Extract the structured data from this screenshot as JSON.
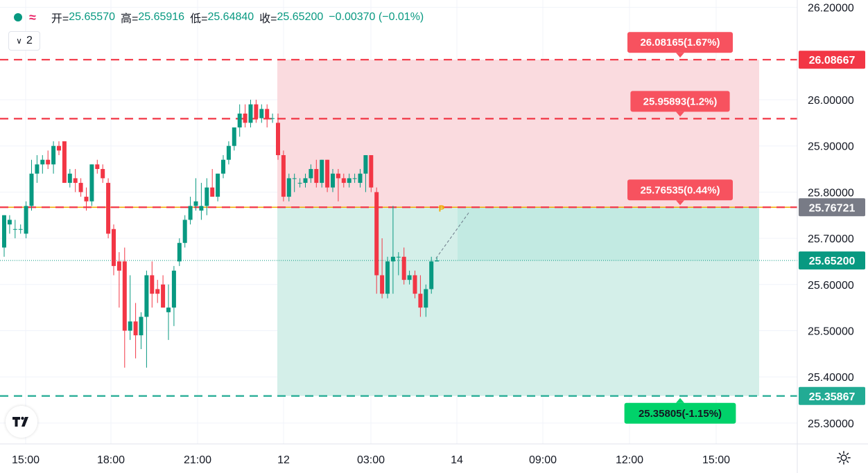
{
  "legend": {
    "open_label": "开=",
    "open_value": "25.65570",
    "high_label": "高=",
    "high_value": "25.65916",
    "low_label": "低=",
    "low_value": "25.64840",
    "close_label": "收=",
    "close_value": "25.65200",
    "change": "−0.00370 (−0.01%)",
    "collapse_count": "2"
  },
  "colors": {
    "up": "#089981",
    "down": "#f23645",
    "target_zone": "#fadbdf",
    "stop_zone": "#d4efe9",
    "entry_line": "#f2a900",
    "grid": "#f0f3fa"
  },
  "chart_data": {
    "type": "candlestick",
    "y_ticks": [
      "26.20000",
      "26.00000",
      "25.90000",
      "25.80000",
      "25.70000",
      "25.60000",
      "25.50000",
      "25.40000",
      "25.30000"
    ],
    "x_ticks": [
      "15:00",
      "18:00",
      "21:00",
      "12",
      "03:00",
      "14",
      "09:00",
      "12:00",
      "15:00"
    ],
    "ylim": [
      25.25,
      26.2
    ],
    "price_labels": [
      {
        "text": "26.08667",
        "price": 26.08667,
        "kind": "red"
      },
      {
        "text": "25.76721",
        "price": 25.76721,
        "kind": "gray"
      },
      {
        "text": "25.65200",
        "price": 25.652,
        "kind": "green"
      },
      {
        "text": "25.35867",
        "price": 25.35867,
        "kind": "teal"
      }
    ],
    "horizontal_lines": [
      {
        "price": 26.08667,
        "color": "#f23645"
      },
      {
        "price": 25.95893,
        "color": "#f23645"
      },
      {
        "price": 25.76721,
        "color": "#f2a900"
      },
      {
        "price": 25.76721,
        "color": "#f23645"
      },
      {
        "price": 25.35867,
        "color": "#22ab94"
      }
    ],
    "position_labels": [
      {
        "text": "26.08165(1.67%)",
        "price": 26.08667,
        "kind": "red"
      },
      {
        "text": "25.95893(1.2%)",
        "price": 25.95893,
        "kind": "red"
      },
      {
        "text": "25.76535(0.44%)",
        "price": 25.76721,
        "kind": "red"
      },
      {
        "text": "25.35805(-1.15%)",
        "price": 25.35867,
        "kind": "green"
      }
    ],
    "entry_marker": "P",
    "last_price": 25.652,
    "candles": [
      {
        "o": 25.68,
        "h": 25.75,
        "l": 25.66,
        "c": 25.75
      },
      {
        "o": 25.73,
        "h": 25.75,
        "l": 25.71,
        "c": 25.74
      },
      {
        "o": 25.72,
        "h": 25.74,
        "l": 25.7,
        "c": 25.72
      },
      {
        "o": 25.72,
        "h": 25.73,
        "l": 25.71,
        "c": 25.72
      },
      {
        "o": 25.71,
        "h": 25.78,
        "l": 25.7,
        "c": 25.77
      },
      {
        "o": 25.77,
        "h": 25.87,
        "l": 25.76,
        "c": 25.84
      },
      {
        "o": 25.84,
        "h": 25.88,
        "l": 25.82,
        "c": 25.86
      },
      {
        "o": 25.86,
        "h": 25.88,
        "l": 25.84,
        "c": 25.87
      },
      {
        "o": 25.87,
        "h": 25.89,
        "l": 25.85,
        "c": 25.86
      },
      {
        "o": 25.86,
        "h": 25.91,
        "l": 25.84,
        "c": 25.9
      },
      {
        "o": 25.9,
        "h": 25.91,
        "l": 25.88,
        "c": 25.89
      },
      {
        "o": 25.91,
        "h": 25.91,
        "l": 25.82,
        "c": 25.82
      },
      {
        "o": 25.82,
        "h": 25.85,
        "l": 25.81,
        "c": 25.84
      },
      {
        "o": 25.83,
        "h": 25.85,
        "l": 25.8,
        "c": 25.82
      },
      {
        "o": 25.82,
        "h": 25.83,
        "l": 25.79,
        "c": 25.8
      },
      {
        "o": 25.79,
        "h": 25.81,
        "l": 25.76,
        "c": 25.78
      },
      {
        "o": 25.78,
        "h": 25.86,
        "l": 25.77,
        "c": 25.86
      },
      {
        "o": 25.86,
        "h": 25.87,
        "l": 25.84,
        "c": 25.85
      },
      {
        "o": 25.85,
        "h": 25.86,
        "l": 25.82,
        "c": 25.83
      },
      {
        "o": 25.82,
        "h": 25.83,
        "l": 25.7,
        "c": 25.71
      },
      {
        "o": 25.72,
        "h": 25.73,
        "l": 25.62,
        "c": 25.64
      },
      {
        "o": 25.65,
        "h": 25.67,
        "l": 25.55,
        "c": 25.63
      },
      {
        "o": 25.65,
        "h": 25.68,
        "l": 25.42,
        "c": 25.5
      },
      {
        "o": 25.5,
        "h": 25.62,
        "l": 25.48,
        "c": 25.52
      },
      {
        "o": 25.52,
        "h": 25.56,
        "l": 25.44,
        "c": 25.49
      },
      {
        "o": 25.49,
        "h": 25.54,
        "l": 25.46,
        "c": 25.53
      },
      {
        "o": 25.53,
        "h": 25.63,
        "l": 25.42,
        "c": 25.62
      },
      {
        "o": 25.62,
        "h": 25.65,
        "l": 25.55,
        "c": 25.58
      },
      {
        "o": 25.59,
        "h": 25.61,
        "l": 25.56,
        "c": 25.58
      },
      {
        "o": 25.6,
        "h": 25.62,
        "l": 25.55,
        "c": 25.55
      },
      {
        "o": 25.54,
        "h": 25.6,
        "l": 25.48,
        "c": 25.55
      },
      {
        "o": 25.55,
        "h": 25.64,
        "l": 25.51,
        "c": 25.63
      },
      {
        "o": 25.65,
        "h": 25.7,
        "l": 25.64,
        "c": 25.69
      },
      {
        "o": 25.69,
        "h": 25.75,
        "l": 25.68,
        "c": 25.74
      },
      {
        "o": 25.74,
        "h": 25.79,
        "l": 25.73,
        "c": 25.77
      },
      {
        "o": 25.77,
        "h": 25.83,
        "l": 25.76,
        "c": 25.78
      },
      {
        "o": 25.76,
        "h": 25.82,
        "l": 25.74,
        "c": 25.77
      },
      {
        "o": 25.77,
        "h": 25.83,
        "l": 25.75,
        "c": 25.81
      },
      {
        "o": 25.81,
        "h": 25.85,
        "l": 25.79,
        "c": 25.79
      },
      {
        "o": 25.79,
        "h": 25.84,
        "l": 25.78,
        "c": 25.84
      },
      {
        "o": 25.84,
        "h": 25.88,
        "l": 25.83,
        "c": 25.87
      },
      {
        "o": 25.87,
        "h": 25.91,
        "l": 25.86,
        "c": 25.9
      },
      {
        "o": 25.9,
        "h": 25.94,
        "l": 25.89,
        "c": 25.94
      },
      {
        "o": 25.94,
        "h": 25.99,
        "l": 25.92,
        "c": 25.97
      },
      {
        "o": 25.97,
        "h": 25.99,
        "l": 25.94,
        "c": 25.95
      },
      {
        "o": 25.95,
        "h": 26.0,
        "l": 25.94,
        "c": 25.99
      },
      {
        "o": 25.99,
        "h": 26.0,
        "l": 25.95,
        "c": 25.96
      },
      {
        "o": 25.96,
        "h": 25.99,
        "l": 25.95,
        "c": 25.98
      },
      {
        "o": 25.98,
        "h": 25.99,
        "l": 25.94,
        "c": 25.96
      },
      {
        "o": 25.96,
        "h": 25.97,
        "l": 25.95,
        "c": 25.96
      },
      {
        "o": 25.95,
        "h": 25.97,
        "l": 25.87,
        "c": 25.88
      },
      {
        "o": 25.88,
        "h": 25.89,
        "l": 25.78,
        "c": 25.79
      },
      {
        "o": 25.79,
        "h": 25.84,
        "l": 25.78,
        "c": 25.83
      },
      {
        "o": 25.83,
        "h": 25.84,
        "l": 25.8,
        "c": 25.83
      },
      {
        "o": 25.82,
        "h": 25.83,
        "l": 25.81,
        "c": 25.82
      },
      {
        "o": 25.82,
        "h": 25.84,
        "l": 25.81,
        "c": 25.83
      },
      {
        "o": 25.83,
        "h": 25.86,
        "l": 25.82,
        "c": 25.85
      },
      {
        "o": 25.85,
        "h": 25.87,
        "l": 25.81,
        "c": 25.82
      },
      {
        "o": 25.82,
        "h": 25.87,
        "l": 25.81,
        "c": 25.87
      },
      {
        "o": 25.87,
        "h": 25.87,
        "l": 25.8,
        "c": 25.81
      },
      {
        "o": 25.81,
        "h": 25.85,
        "l": 25.8,
        "c": 25.84
      },
      {
        "o": 25.84,
        "h": 25.85,
        "l": 25.78,
        "c": 25.83
      },
      {
        "o": 25.83,
        "h": 25.84,
        "l": 25.81,
        "c": 25.82
      },
      {
        "o": 25.82,
        "h": 25.84,
        "l": 25.81,
        "c": 25.83
      },
      {
        "o": 25.83,
        "h": 25.84,
        "l": 25.82,
        "c": 25.83
      },
      {
        "o": 25.82,
        "h": 25.85,
        "l": 25.81,
        "c": 25.84
      },
      {
        "o": 25.84,
        "h": 25.88,
        "l": 25.8,
        "c": 25.88
      },
      {
        "o": 25.88,
        "h": 25.88,
        "l": 25.8,
        "c": 25.81
      },
      {
        "o": 25.8,
        "h": 25.81,
        "l": 25.58,
        "c": 25.62
      },
      {
        "o": 25.62,
        "h": 25.7,
        "l": 25.57,
        "c": 25.58
      },
      {
        "o": 25.58,
        "h": 25.66,
        "l": 25.57,
        "c": 25.65
      },
      {
        "o": 25.65,
        "h": 25.77,
        "l": 25.58,
        "c": 25.66
      },
      {
        "o": 25.66,
        "h": 25.67,
        "l": 25.62,
        "c": 25.66
      },
      {
        "o": 25.66,
        "h": 25.68,
        "l": 25.6,
        "c": 25.61
      },
      {
        "o": 25.61,
        "h": 25.63,
        "l": 25.6,
        "c": 25.62
      },
      {
        "o": 25.62,
        "h": 25.63,
        "l": 25.57,
        "c": 25.58
      },
      {
        "o": 25.58,
        "h": 25.62,
        "l": 25.53,
        "c": 25.55
      },
      {
        "o": 25.55,
        "h": 25.6,
        "l": 25.53,
        "c": 25.59
      },
      {
        "o": 25.59,
        "h": 25.66,
        "l": 25.58,
        "c": 25.65
      },
      {
        "o": 25.65,
        "h": 25.66,
        "l": 25.65,
        "c": 25.652
      }
    ]
  }
}
